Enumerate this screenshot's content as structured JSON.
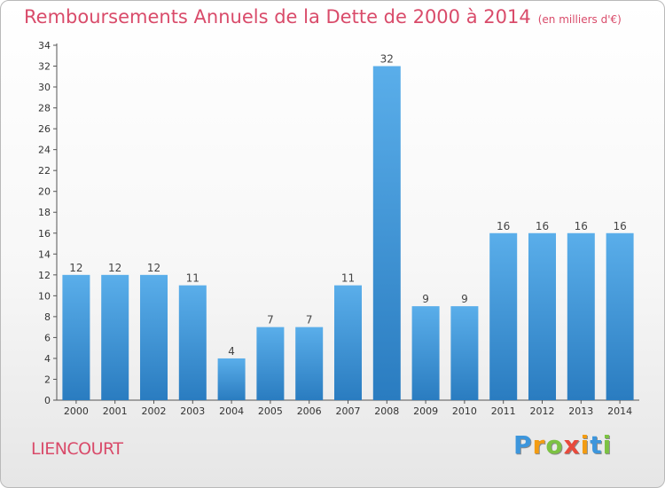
{
  "chart_data": {
    "type": "bar",
    "title": "Remboursements Annuels de la Dette de 2000 à 2014",
    "subtitle": "(en milliers d'€)",
    "xlabel": "",
    "ylabel": "",
    "categories": [
      "2000",
      "2001",
      "2002",
      "2003",
      "2004",
      "2005",
      "2006",
      "2007",
      "2008",
      "2009",
      "2010",
      "2011",
      "2012",
      "2013",
      "2014"
    ],
    "values": [
      12,
      12,
      12,
      11,
      4,
      7,
      7,
      11,
      32,
      9,
      9,
      16,
      16,
      16,
      16
    ],
    "ylim": [
      0,
      34
    ],
    "yticks": [
      0,
      2,
      4,
      6,
      8,
      10,
      12,
      14,
      16,
      18,
      20,
      22,
      24,
      26,
      28,
      30,
      32,
      34
    ],
    "grid": false,
    "bar_color": "#3d96dc"
  },
  "footer": {
    "commune": "LIENCOURT",
    "logo_letters": [
      "P",
      "r",
      "o",
      "x",
      "i",
      "t",
      "i"
    ],
    "logo_colors": [
      "#3d96dc",
      "#f39c12",
      "#7cc243",
      "#e84a3c",
      "#f39c12",
      "#3d96dc",
      "#7cc243"
    ]
  }
}
